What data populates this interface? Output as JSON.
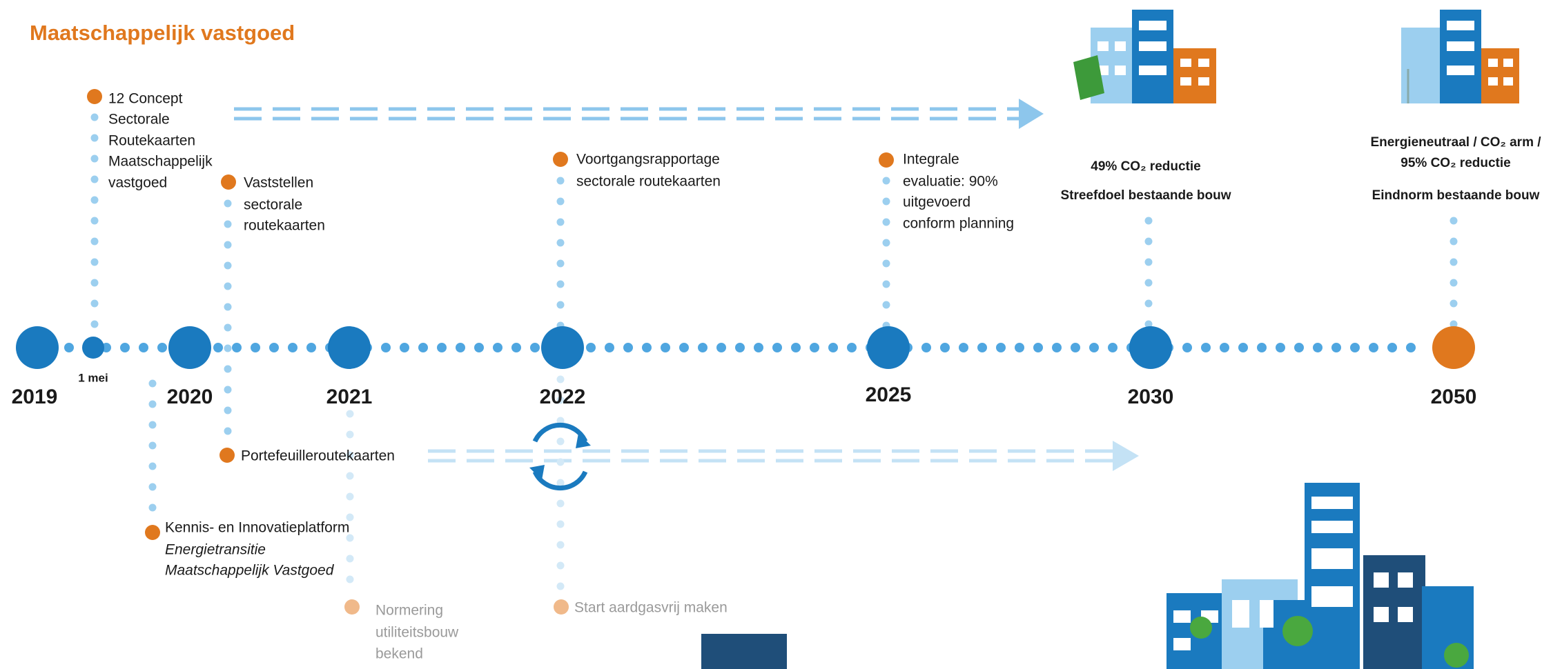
{
  "title": "Maatschappelijk vastgoed",
  "timeline": {
    "years": [
      "2019",
      "2020",
      "2021",
      "2022",
      "2025",
      "2030",
      "2050"
    ],
    "milestone": "1 mei"
  },
  "events": [
    {
      "lines": [
        "12 Concept",
        "Sectorale",
        "Routekaarten",
        "Maatschappelijk",
        "vastgoed"
      ]
    },
    {
      "lines": [
        "Vaststellen",
        "sectorale",
        "routekaarten"
      ]
    },
    {
      "lines": [
        "Portefeuilleroutekaarten"
      ]
    },
    {
      "lines": [
        "Kennis- en Innovatieplatform",
        "Energietransitie",
        "Maatschappelijk Vastgoed"
      ]
    },
    {
      "lines": [
        "Normering",
        "utiliteitsbouw",
        "bekend"
      ]
    },
    {
      "lines": [
        "Voortgangsrapportage",
        "sectorale routekaarten"
      ]
    },
    {
      "lines": [
        "Start aardgasvrij maken"
      ]
    },
    {
      "lines": [
        "Integrale",
        "evaluatie: 90%",
        "uitgevoerd",
        "conform planning"
      ]
    }
  ],
  "targets": [
    {
      "lines": [
        "49% CO₂ reductie",
        "Streefdoel bestaande bouw"
      ]
    },
    {
      "lines": [
        "Energieneutraal / CO₂ arm /",
        "95% CO₂ reductie",
        "Eindnorm bestaande bouw"
      ]
    }
  ]
}
